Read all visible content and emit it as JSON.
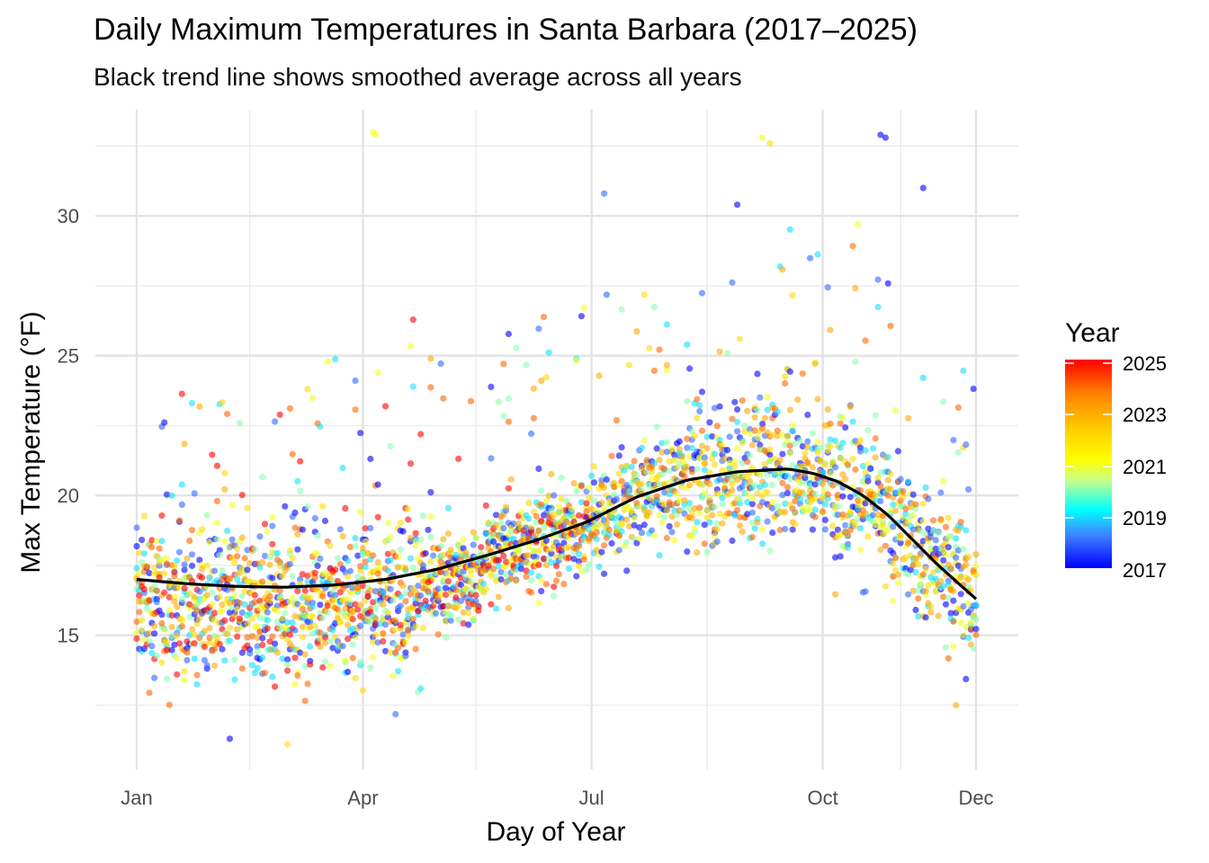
{
  "chart_data": {
    "type": "scatter",
    "title": "Daily Maximum Temperatures in Santa Barbara (2017–2025)",
    "subtitle": "Black trend line shows smoothed average across all years",
    "xlabel": "Day of Year",
    "ylabel": "Max Temperature (°F)",
    "xlim": [
      1,
      335
    ],
    "ylim": [
      10.2,
      33.8
    ],
    "grid": true,
    "x_ticks": [
      {
        "label": "Jan",
        "value": 1
      },
      {
        "label": "Apr",
        "value": 91
      },
      {
        "label": "Jul",
        "value": 182
      },
      {
        "label": "Oct",
        "value": 274
      },
      {
        "label": "Dec",
        "value": 335
      }
    ],
    "x_minor_ticks": [
      46,
      136,
      228,
      305
    ],
    "y_ticks": [
      15,
      20,
      25,
      30
    ],
    "y_minor_ticks": [
      12.5,
      17.5,
      22.5,
      27.5,
      32.5
    ],
    "legend": {
      "title": "Year",
      "position": "right",
      "labels": [
        "2025",
        "2023",
        "2021",
        "2019",
        "2017"
      ],
      "range": [
        2017,
        2025
      ],
      "colors": [
        "#0000ff",
        "#3f84ff",
        "#00ffff",
        "#c8ff8c",
        "#ffff00",
        "#ffc800",
        "#ff8000",
        "#ff0000"
      ]
    },
    "trend_line": {
      "color": "#000000",
      "x": [
        1,
        20,
        40,
        60,
        80,
        100,
        120,
        140,
        160,
        180,
        200,
        220,
        240,
        260,
        270,
        280,
        290,
        300,
        310,
        320,
        335
      ],
      "y": [
        17.0,
        16.85,
        16.75,
        16.72,
        16.8,
        17.0,
        17.35,
        17.85,
        18.4,
        19.05,
        19.95,
        20.55,
        20.85,
        20.95,
        20.8,
        20.5,
        20.0,
        19.3,
        18.4,
        17.5,
        16.3
      ]
    },
    "notable_points": [
      {
        "x": 95,
        "y": 33.0,
        "year": 2021
      },
      {
        "x": 96,
        "y": 32.9,
        "year": 2021
      },
      {
        "x": 250,
        "y": 32.8,
        "year": 2021
      },
      {
        "x": 253,
        "y": 32.6,
        "year": 2022
      },
      {
        "x": 297,
        "y": 32.9,
        "year": 2017
      },
      {
        "x": 299,
        "y": 32.8,
        "year": 2017
      },
      {
        "x": 187,
        "y": 30.8,
        "year": 2018
      },
      {
        "x": 240,
        "y": 30.4,
        "year": 2017
      },
      {
        "x": 314,
        "y": 31.0,
        "year": 2017
      },
      {
        "x": 38,
        "y": 11.3,
        "year": 2017
      },
      {
        "x": 61,
        "y": 11.1,
        "year": 2022
      },
      {
        "x": 327,
        "y": 12.5,
        "year": 2023
      }
    ],
    "point_count_estimate": 2800
  }
}
